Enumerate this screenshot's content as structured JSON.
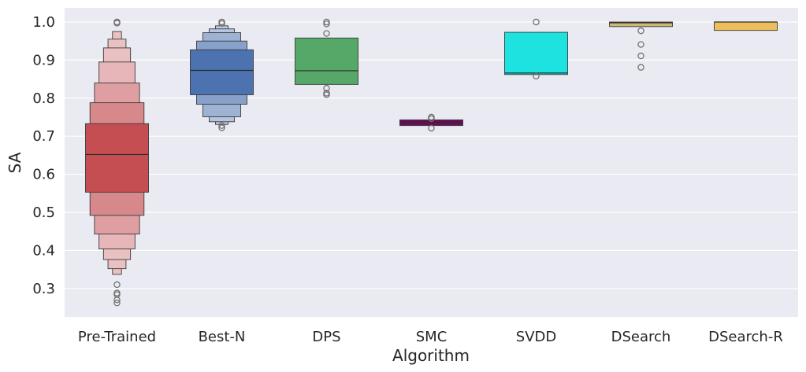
{
  "chart_data": {
    "type": "boxen",
    "title": "",
    "xlabel": "Algorithm",
    "ylabel": "SA",
    "ylim": [
      0.22,
      1.035
    ],
    "yticks": [
      0.3,
      0.4,
      0.5,
      0.6,
      0.7,
      0.8,
      0.9,
      1.0
    ],
    "ytick_labels": [
      "0.3",
      "0.4",
      "0.5",
      "0.6",
      "0.7",
      "0.8",
      "0.9",
      "1.0"
    ],
    "grid": true,
    "categories": [
      "Pre-Trained",
      "Best-N",
      "DPS",
      "SMC",
      "SVDD",
      "DSearch",
      "DSearch-R"
    ],
    "series": [
      {
        "name": "Pre-Trained",
        "color": "#c44e52",
        "median": 0.652,
        "boxes": [
          {
            "low": 0.553,
            "high": 0.733
          },
          {
            "low": 0.492,
            "high": 0.788
          },
          {
            "low": 0.443,
            "high": 0.84
          },
          {
            "low": 0.404,
            "high": 0.895
          },
          {
            "low": 0.376,
            "high": 0.932
          },
          {
            "low": 0.352,
            "high": 0.955
          },
          {
            "low": 0.337,
            "high": 0.975
          }
        ],
        "outliers": [
          0.31,
          0.288,
          0.284,
          0.27,
          0.262,
          0.997,
          1.0
        ]
      },
      {
        "name": "Best-N",
        "color": "#4c72b0",
        "median": 0.873,
        "boxes": [
          {
            "low": 0.809,
            "high": 0.927
          },
          {
            "low": 0.784,
            "high": 0.95
          },
          {
            "low": 0.751,
            "high": 0.972
          },
          {
            "low": 0.738,
            "high": 0.982
          },
          {
            "low": 0.731,
            "high": 0.99
          }
        ],
        "outliers": [
          0.728,
          0.722,
          0.996,
          1.0
        ]
      },
      {
        "name": "DPS",
        "color": "#55a868",
        "median": 0.872,
        "boxes": [
          {
            "low": 0.836,
            "high": 0.958
          }
        ],
        "outliers": [
          0.826,
          0.813,
          0.809,
          0.97,
          0.995,
          1.0
        ]
      },
      {
        "name": "SMC",
        "color": "#6e0a5c",
        "median": 0.737,
        "boxes": [
          {
            "low": 0.728,
            "high": 0.743
          }
        ],
        "outliers": [
          0.75,
          0.746,
          0.721
        ]
      },
      {
        "name": "SVDD",
        "color": "#1de2e0",
        "median": 0.866,
        "boxes": [
          {
            "low": 0.862,
            "high": 0.973
          }
        ],
        "outliers": [
          0.858,
          1.0
        ]
      },
      {
        "name": "DSearch",
        "color": "#ccb974",
        "median": 0.998,
        "boxes": [
          {
            "low": 0.988,
            "high": 1.0
          }
        ],
        "outliers": [
          0.977,
          0.941,
          0.911,
          0.881
        ]
      },
      {
        "name": "DSearch-R",
        "color": "#ecbf5a",
        "median": 1.0,
        "boxes": [
          {
            "low": 0.978,
            "high": 1.0
          }
        ],
        "outliers": []
      }
    ]
  }
}
